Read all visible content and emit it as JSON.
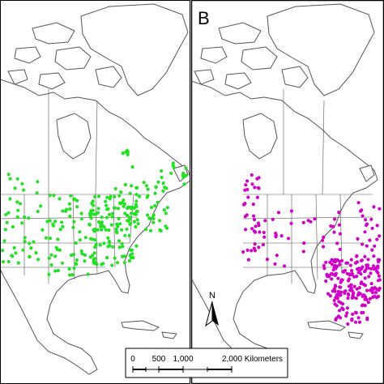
{
  "panels": [
    {
      "id": "A",
      "letter": "",
      "dot_color": "#22e022",
      "dot_density": "dense in eastern North America, scattered across central and western United States and southeastern Canada"
    },
    {
      "id": "B",
      "letter": "B",
      "dot_color": "#d000c8",
      "dot_density": "dense along the Gulf coast and southeastern United States, scattered along the Pacific coast and interior"
    }
  ],
  "north_arrow": {
    "letter": "N"
  },
  "scale_bar": {
    "ticks": [
      "0",
      "500",
      "1,000",
      "2,000 Kilometers"
    ]
  },
  "colors": {
    "land_outline": "#555555",
    "panel_border": "#000000",
    "background": "#ffffff"
  }
}
